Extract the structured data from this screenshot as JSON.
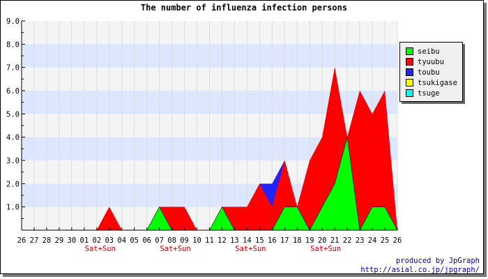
{
  "chart_data": {
    "type": "area",
    "title": "The number of influenza infection persons",
    "xlabel": "",
    "ylabel": "",
    "categories": [
      "26",
      "27",
      "28",
      "29",
      "30",
      "01",
      "02",
      "03",
      "04",
      "05",
      "06",
      "07",
      "08",
      "09",
      "10",
      "11",
      "12",
      "13",
      "14",
      "15",
      "16",
      "17",
      "18",
      "19",
      "20",
      "21",
      "22",
      "23",
      "24",
      "25",
      "26"
    ],
    "weekend_label": "Sat+Sun",
    "weekend_positions": [
      6,
      12,
      18,
      24
    ],
    "ylim": [
      0,
      9
    ],
    "y_ticks": [
      "1.0",
      "2.0",
      "3.0",
      "4.0",
      "5.0",
      "6.0",
      "7.0",
      "8.0",
      "9.0"
    ],
    "stacked": true,
    "grid": true,
    "legend_position": "right",
    "series": [
      {
        "name": "seibu",
        "color": "#00ff00",
        "values": [
          0,
          0,
          0,
          0,
          0,
          0,
          0,
          0,
          0,
          0,
          0,
          1,
          0,
          0,
          0,
          0,
          1,
          0,
          0,
          0,
          0,
          1,
          1,
          0,
          1,
          2,
          4,
          0,
          1,
          1,
          0
        ]
      },
      {
        "name": "tyuubu",
        "color": "#ff0000",
        "values": [
          0,
          0,
          0,
          0,
          0,
          0,
          0,
          1,
          0,
          0,
          0,
          0,
          1,
          1,
          0,
          0,
          0,
          1,
          1,
          2,
          1,
          2,
          0,
          3,
          3,
          5,
          0,
          6,
          4,
          5,
          0
        ]
      },
      {
        "name": "toubu",
        "color": "#2222ff",
        "values": [
          0,
          0,
          0,
          0,
          0,
          0,
          0,
          0,
          0,
          0,
          0,
          0,
          0,
          0,
          0,
          0,
          0,
          0,
          0,
          0,
          1,
          0,
          0,
          0,
          0,
          0,
          0,
          0,
          0,
          0,
          0
        ]
      },
      {
        "name": "tsukigase",
        "color": "#ffff00",
        "values": [
          0,
          0,
          0,
          0,
          0,
          0,
          0,
          0,
          0,
          0,
          0,
          0,
          0,
          0,
          0,
          0,
          0,
          0,
          0,
          0,
          0,
          0,
          0,
          0,
          0,
          0,
          0,
          0,
          0,
          0,
          0
        ]
      },
      {
        "name": "tsuge",
        "color": "#00ffff",
        "values": [
          0,
          0,
          0,
          0,
          0,
          0,
          0,
          0,
          0,
          0,
          0,
          0,
          0,
          0,
          0,
          0,
          0,
          0,
          0,
          0,
          0,
          0,
          0,
          0,
          0,
          0,
          0,
          0,
          0,
          0,
          0
        ]
      }
    ]
  },
  "credits": {
    "line1": "produced by JpGraph",
    "line2": "http://asial.co.jp/jpgraph/"
  }
}
